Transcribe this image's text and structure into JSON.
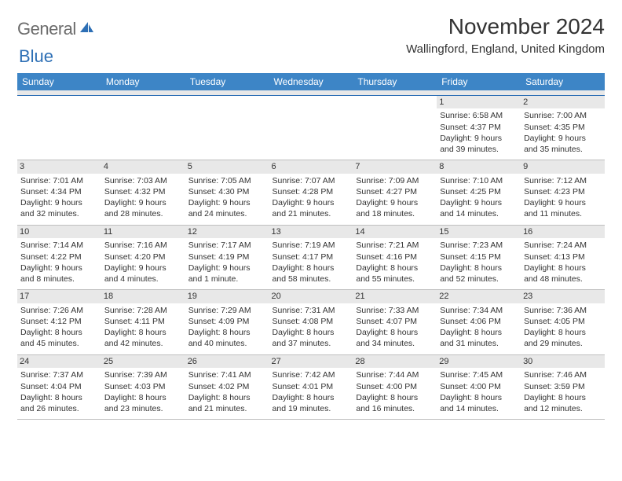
{
  "brand": {
    "part1": "General",
    "part2": "Blue"
  },
  "title": "November 2024",
  "location": "Wallingford, England, United Kingdom",
  "colors": {
    "header_bg": "#3d85c6",
    "header_text": "#ffffff",
    "brand_gray": "#6b6b6b",
    "brand_blue": "#2d6fb5",
    "daynum_bg": "#e8e8e8",
    "row_border": "#2d6fb5",
    "text": "#333333",
    "background": "#ffffff"
  },
  "fonts": {
    "body_pt": 10.5,
    "title_pt": 28,
    "location_pt": 15,
    "header_pt": 12
  },
  "day_labels": [
    "Sunday",
    "Monday",
    "Tuesday",
    "Wednesday",
    "Thursday",
    "Friday",
    "Saturday"
  ],
  "weeks": [
    [
      {
        "n": "",
        "sr": "",
        "ss": "",
        "dl": ""
      },
      {
        "n": "",
        "sr": "",
        "ss": "",
        "dl": ""
      },
      {
        "n": "",
        "sr": "",
        "ss": "",
        "dl": ""
      },
      {
        "n": "",
        "sr": "",
        "ss": "",
        "dl": ""
      },
      {
        "n": "",
        "sr": "",
        "ss": "",
        "dl": ""
      },
      {
        "n": "1",
        "sr": "Sunrise: 6:58 AM",
        "ss": "Sunset: 4:37 PM",
        "dl": "Daylight: 9 hours and 39 minutes."
      },
      {
        "n": "2",
        "sr": "Sunrise: 7:00 AM",
        "ss": "Sunset: 4:35 PM",
        "dl": "Daylight: 9 hours and 35 minutes."
      }
    ],
    [
      {
        "n": "3",
        "sr": "Sunrise: 7:01 AM",
        "ss": "Sunset: 4:34 PM",
        "dl": "Daylight: 9 hours and 32 minutes."
      },
      {
        "n": "4",
        "sr": "Sunrise: 7:03 AM",
        "ss": "Sunset: 4:32 PM",
        "dl": "Daylight: 9 hours and 28 minutes."
      },
      {
        "n": "5",
        "sr": "Sunrise: 7:05 AM",
        "ss": "Sunset: 4:30 PM",
        "dl": "Daylight: 9 hours and 24 minutes."
      },
      {
        "n": "6",
        "sr": "Sunrise: 7:07 AM",
        "ss": "Sunset: 4:28 PM",
        "dl": "Daylight: 9 hours and 21 minutes."
      },
      {
        "n": "7",
        "sr": "Sunrise: 7:09 AM",
        "ss": "Sunset: 4:27 PM",
        "dl": "Daylight: 9 hours and 18 minutes."
      },
      {
        "n": "8",
        "sr": "Sunrise: 7:10 AM",
        "ss": "Sunset: 4:25 PM",
        "dl": "Daylight: 9 hours and 14 minutes."
      },
      {
        "n": "9",
        "sr": "Sunrise: 7:12 AM",
        "ss": "Sunset: 4:23 PM",
        "dl": "Daylight: 9 hours and 11 minutes."
      }
    ],
    [
      {
        "n": "10",
        "sr": "Sunrise: 7:14 AM",
        "ss": "Sunset: 4:22 PM",
        "dl": "Daylight: 9 hours and 8 minutes."
      },
      {
        "n": "11",
        "sr": "Sunrise: 7:16 AM",
        "ss": "Sunset: 4:20 PM",
        "dl": "Daylight: 9 hours and 4 minutes."
      },
      {
        "n": "12",
        "sr": "Sunrise: 7:17 AM",
        "ss": "Sunset: 4:19 PM",
        "dl": "Daylight: 9 hours and 1 minute."
      },
      {
        "n": "13",
        "sr": "Sunrise: 7:19 AM",
        "ss": "Sunset: 4:17 PM",
        "dl": "Daylight: 8 hours and 58 minutes."
      },
      {
        "n": "14",
        "sr": "Sunrise: 7:21 AM",
        "ss": "Sunset: 4:16 PM",
        "dl": "Daylight: 8 hours and 55 minutes."
      },
      {
        "n": "15",
        "sr": "Sunrise: 7:23 AM",
        "ss": "Sunset: 4:15 PM",
        "dl": "Daylight: 8 hours and 52 minutes."
      },
      {
        "n": "16",
        "sr": "Sunrise: 7:24 AM",
        "ss": "Sunset: 4:13 PM",
        "dl": "Daylight: 8 hours and 48 minutes."
      }
    ],
    [
      {
        "n": "17",
        "sr": "Sunrise: 7:26 AM",
        "ss": "Sunset: 4:12 PM",
        "dl": "Daylight: 8 hours and 45 minutes."
      },
      {
        "n": "18",
        "sr": "Sunrise: 7:28 AM",
        "ss": "Sunset: 4:11 PM",
        "dl": "Daylight: 8 hours and 42 minutes."
      },
      {
        "n": "19",
        "sr": "Sunrise: 7:29 AM",
        "ss": "Sunset: 4:09 PM",
        "dl": "Daylight: 8 hours and 40 minutes."
      },
      {
        "n": "20",
        "sr": "Sunrise: 7:31 AM",
        "ss": "Sunset: 4:08 PM",
        "dl": "Daylight: 8 hours and 37 minutes."
      },
      {
        "n": "21",
        "sr": "Sunrise: 7:33 AM",
        "ss": "Sunset: 4:07 PM",
        "dl": "Daylight: 8 hours and 34 minutes."
      },
      {
        "n": "22",
        "sr": "Sunrise: 7:34 AM",
        "ss": "Sunset: 4:06 PM",
        "dl": "Daylight: 8 hours and 31 minutes."
      },
      {
        "n": "23",
        "sr": "Sunrise: 7:36 AM",
        "ss": "Sunset: 4:05 PM",
        "dl": "Daylight: 8 hours and 29 minutes."
      }
    ],
    [
      {
        "n": "24",
        "sr": "Sunrise: 7:37 AM",
        "ss": "Sunset: 4:04 PM",
        "dl": "Daylight: 8 hours and 26 minutes."
      },
      {
        "n": "25",
        "sr": "Sunrise: 7:39 AM",
        "ss": "Sunset: 4:03 PM",
        "dl": "Daylight: 8 hours and 23 minutes."
      },
      {
        "n": "26",
        "sr": "Sunrise: 7:41 AM",
        "ss": "Sunset: 4:02 PM",
        "dl": "Daylight: 8 hours and 21 minutes."
      },
      {
        "n": "27",
        "sr": "Sunrise: 7:42 AM",
        "ss": "Sunset: 4:01 PM",
        "dl": "Daylight: 8 hours and 19 minutes."
      },
      {
        "n": "28",
        "sr": "Sunrise: 7:44 AM",
        "ss": "Sunset: 4:00 PM",
        "dl": "Daylight: 8 hours and 16 minutes."
      },
      {
        "n": "29",
        "sr": "Sunrise: 7:45 AM",
        "ss": "Sunset: 4:00 PM",
        "dl": "Daylight: 8 hours and 14 minutes."
      },
      {
        "n": "30",
        "sr": "Sunrise: 7:46 AM",
        "ss": "Sunset: 3:59 PM",
        "dl": "Daylight: 8 hours and 12 minutes."
      }
    ]
  ]
}
